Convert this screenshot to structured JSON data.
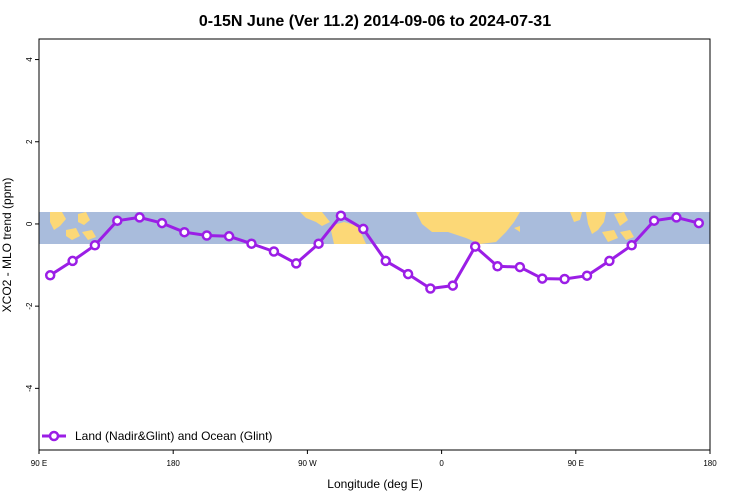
{
  "chart_data": {
    "type": "line",
    "title": "0-15N June (Ver 11.2)   2014-09-06 to 2024-07-31",
    "xlabel": "Longitude (deg E)",
    "ylabel": "XCO2 - MLO trend (ppm)",
    "x_ticks": [
      {
        "value": 90,
        "label": "90 E"
      },
      {
        "value": 180,
        "label": "180"
      },
      {
        "value": 270,
        "label": "90 W"
      },
      {
        "value": 360,
        "label": "0"
      },
      {
        "value": 450,
        "label": "90 E"
      },
      {
        "value": 540,
        "label": "180"
      }
    ],
    "y_ticks": [
      {
        "value": 4,
        "label": "4"
      },
      {
        "value": 2,
        "label": "2"
      },
      {
        "value": 0,
        "label": "0"
      },
      {
        "value": -2,
        "label": "-2"
      },
      {
        "value": -4,
        "label": "-4"
      }
    ],
    "xlim": [
      90,
      540
    ],
    "ylim": [
      -5.5,
      4.5
    ],
    "map_band_ylim": [
      -0.5,
      0.3
    ],
    "legend_position": "bottom-left",
    "colors": {
      "series": "#9b1ee6",
      "ocean": "#a9bcdc",
      "land": "#fcd877",
      "axis": "#000000"
    },
    "series": [
      {
        "name": "Land (Nadir&Glint) and Ocean (Glint)",
        "x": [
          97.5,
          112.5,
          127.5,
          142.5,
          157.5,
          172.5,
          187.5,
          202.5,
          217.5,
          232.5,
          247.5,
          262.5,
          277.5,
          292.5,
          307.5,
          322.5,
          337.5,
          352.5,
          367.5,
          382.5,
          397.5,
          412.5,
          427.5,
          442.5,
          457.5,
          472.5,
          487.5,
          502.5,
          517.5,
          532.5
        ],
        "y": [
          -1.25,
          -0.9,
          -0.52,
          0.08,
          0.16,
          0.02,
          -0.2,
          -0.28,
          -0.3,
          -0.48,
          -0.67,
          -0.96,
          -0.48,
          0.2,
          -0.12,
          -0.9,
          -1.22,
          -1.57,
          -1.5,
          -0.55,
          -1.03,
          -1.05,
          -1.33,
          -1.34,
          -1.26,
          -0.9,
          -0.52,
          0.08,
          0.16,
          0.02
        ]
      }
    ]
  }
}
